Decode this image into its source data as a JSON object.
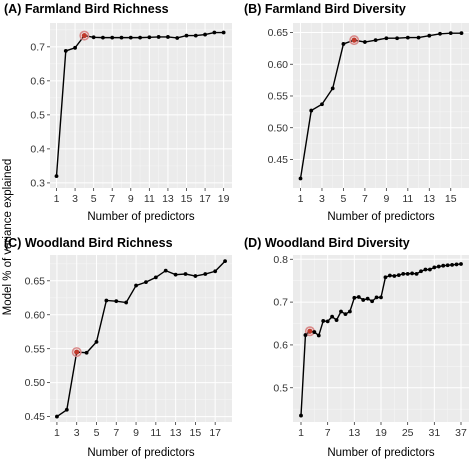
{
  "figure": {
    "shared_ylabel": "Model % of variance explained"
  },
  "chart_data": [
    {
      "type": "line",
      "title": "(A) Farmland Bird Richness",
      "xlabel": "Number of predictors",
      "ylabel": "Model % of variance explained",
      "xlim": [
        0.3,
        19.9
      ],
      "ylim": [
        0.285,
        0.77
      ],
      "x_ticks": [
        1,
        3,
        5,
        7,
        9,
        11,
        13,
        15,
        17,
        19
      ],
      "y_ticks": [
        0.3,
        0.4,
        0.5,
        0.6,
        0.7
      ],
      "y_tick_labels": [
        "0.3",
        "0.4",
        "0.5",
        "0.6",
        "0.7"
      ],
      "x": [
        1,
        2,
        3,
        4,
        5,
        6,
        7,
        8,
        9,
        10,
        11,
        12,
        13,
        14,
        15,
        16,
        17,
        18,
        19
      ],
      "values": [
        0.32,
        0.688,
        0.697,
        0.733,
        0.728,
        0.727,
        0.727,
        0.727,
        0.727,
        0.727,
        0.728,
        0.729,
        0.729,
        0.726,
        0.733,
        0.733,
        0.736,
        0.742,
        0.742
      ],
      "highlight_x": 4,
      "grid": true,
      "background": "#ebebeb"
    },
    {
      "type": "line",
      "title": "(B) Farmland Bird Diversity",
      "xlabel": "Number of predictors",
      "ylabel": "",
      "xlim": [
        0.3,
        16.7
      ],
      "ylim": [
        0.405,
        0.665
      ],
      "x_ticks": [
        1,
        3,
        5,
        7,
        9,
        11,
        13,
        15
      ],
      "y_ticks": [
        0.45,
        0.5,
        0.55,
        0.6,
        0.65
      ],
      "y_tick_labels": [
        "0.45",
        "0.50",
        "0.55",
        "0.60",
        "0.65"
      ],
      "x": [
        1,
        2,
        3,
        4,
        5,
        6,
        7,
        8,
        9,
        10,
        11,
        12,
        13,
        14,
        15,
        16
      ],
      "values": [
        0.42,
        0.527,
        0.537,
        0.562,
        0.632,
        0.638,
        0.635,
        0.638,
        0.641,
        0.641,
        0.642,
        0.642,
        0.645,
        0.648,
        0.649,
        0.649
      ],
      "highlight_x": 6,
      "grid": true,
      "background": "#ebebeb"
    },
    {
      "type": "line",
      "title": "(C) Woodland Bird Richness",
      "xlabel": "Number of predictors",
      "ylabel": "Model % of variance explained",
      "xlim": [
        0.3,
        18.7
      ],
      "ylim": [
        0.442,
        0.688
      ],
      "x_ticks": [
        1,
        3,
        5,
        7,
        9,
        11,
        13,
        15,
        17
      ],
      "y_ticks": [
        0.45,
        0.5,
        0.55,
        0.6,
        0.65
      ],
      "y_tick_labels": [
        "0.45",
        "0.50",
        "0.55",
        "0.60",
        "0.65"
      ],
      "x": [
        1,
        2,
        3,
        4,
        5,
        6,
        7,
        8,
        9,
        10,
        11,
        12,
        13,
        14,
        15,
        16,
        17,
        18
      ],
      "values": [
        0.45,
        0.46,
        0.545,
        0.544,
        0.56,
        0.621,
        0.62,
        0.618,
        0.643,
        0.648,
        0.655,
        0.665,
        0.659,
        0.66,
        0.657,
        0.66,
        0.664,
        0.679
      ],
      "highlight_x": 3,
      "grid": true,
      "background": "#ebebeb"
    },
    {
      "type": "line",
      "title": "(D) Woodland Bird Diversity",
      "xlabel": "Number of predictors",
      "ylabel": "",
      "xlim": [
        -0.8,
        38.8
      ],
      "ylim": [
        0.42,
        0.81
      ],
      "x_ticks": [
        1,
        7,
        13,
        19,
        25,
        31,
        37
      ],
      "y_ticks": [
        0.5,
        0.6,
        0.7,
        0.8
      ],
      "y_tick_labels": [
        "0.5",
        "0.6",
        "0.7",
        "0.8"
      ],
      "x": [
        1,
        2,
        3,
        4,
        5,
        6,
        7,
        8,
        9,
        10,
        11,
        12,
        13,
        14,
        15,
        16,
        17,
        18,
        19,
        20,
        21,
        22,
        23,
        24,
        25,
        26,
        27,
        28,
        29,
        30,
        31,
        32,
        33,
        34,
        35,
        36,
        37
      ],
      "values": [
        0.435,
        0.623,
        0.632,
        0.63,
        0.622,
        0.656,
        0.655,
        0.666,
        0.658,
        0.678,
        0.672,
        0.678,
        0.71,
        0.712,
        0.705,
        0.708,
        0.702,
        0.711,
        0.711,
        0.758,
        0.762,
        0.761,
        0.763,
        0.766,
        0.766,
        0.767,
        0.766,
        0.772,
        0.776,
        0.776,
        0.781,
        0.783,
        0.785,
        0.786,
        0.787,
        0.788,
        0.789
      ],
      "highlight_x": 3,
      "grid": true,
      "background": "#ebebeb"
    }
  ]
}
